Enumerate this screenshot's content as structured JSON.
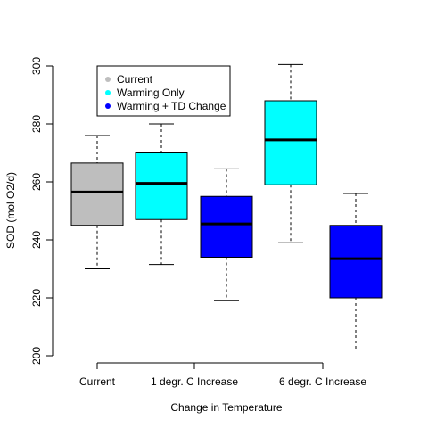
{
  "chart_data": {
    "type": "boxplot",
    "title": "",
    "xlabel": "Change in Temperature",
    "ylabel": "SOD (mol O2/d)",
    "ylim": [
      200,
      300
    ],
    "yticks": [
      200,
      220,
      240,
      260,
      280,
      300
    ],
    "grid": false,
    "legend_position": "top-left",
    "categories": [
      "Current",
      "1 degr. C Increase",
      "6 degr. C Increase"
    ],
    "series": [
      {
        "name": "Current",
        "color": "#bebebe"
      },
      {
        "name": "Warming Only",
        "color": "#00ffff"
      },
      {
        "name": "Warming + TD Change",
        "color": "#0000ff"
      }
    ],
    "boxes": [
      {
        "category": "Current",
        "series": "Current",
        "min": 230,
        "q1": 245,
        "median": 256.5,
        "q3": 266.5,
        "max": 276
      },
      {
        "category": "1 degr. C Increase",
        "series": "Warming Only",
        "min": 231.5,
        "q1": 247,
        "median": 259.5,
        "q3": 270,
        "max": 280
      },
      {
        "category": "1 degr. C Increase",
        "series": "Warming + TD Change",
        "min": 219,
        "q1": 234,
        "median": 245.5,
        "q3": 255,
        "max": 264.5
      },
      {
        "category": "6 degr. C Increase",
        "series": "Warming Only",
        "min": 239,
        "q1": 259,
        "median": 274.5,
        "q3": 288,
        "max": 300.5
      },
      {
        "category": "6 degr. C Increase",
        "series": "Warming + TD Change",
        "min": 202,
        "q1": 220,
        "median": 233.5,
        "q3": 245,
        "max": 256
      }
    ]
  }
}
